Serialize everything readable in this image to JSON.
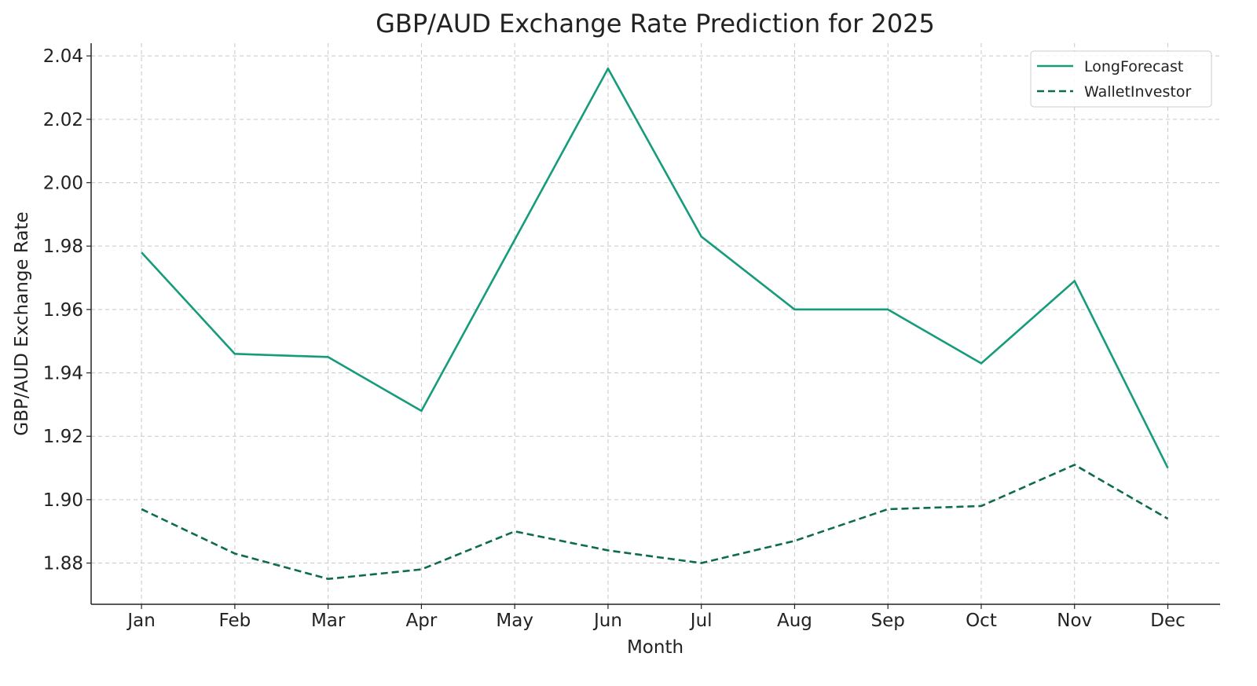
{
  "chart_data": {
    "type": "line",
    "title": "GBP/AUD Exchange Rate Prediction for 2025",
    "xlabel": "Month",
    "ylabel": "GBP/AUD Exchange Rate",
    "categories": [
      "Jan",
      "Feb",
      "Mar",
      "Apr",
      "May",
      "Jun",
      "Jul",
      "Aug",
      "Sep",
      "Oct",
      "Nov",
      "Dec"
    ],
    "yticks": [
      "1.88",
      "1.90",
      "1.92",
      "1.94",
      "1.96",
      "1.98",
      "2.00",
      "2.02",
      "2.04"
    ],
    "ylim": [
      1.867,
      2.044
    ],
    "grid": true,
    "legend_position": "top-right",
    "series": [
      {
        "name": "LongForecast",
        "style": "solid",
        "color": "#169c7b",
        "values": [
          1.978,
          1.946,
          1.945,
          1.928,
          1.982,
          2.036,
          1.983,
          1.96,
          1.96,
          1.943,
          1.969,
          1.91
        ]
      },
      {
        "name": "WalletInvestor",
        "style": "dashed",
        "color": "#0e6b52",
        "values": [
          1.897,
          1.883,
          1.875,
          1.878,
          1.89,
          1.884,
          1.88,
          1.887,
          1.897,
          1.898,
          1.911,
          1.894
        ]
      }
    ]
  }
}
